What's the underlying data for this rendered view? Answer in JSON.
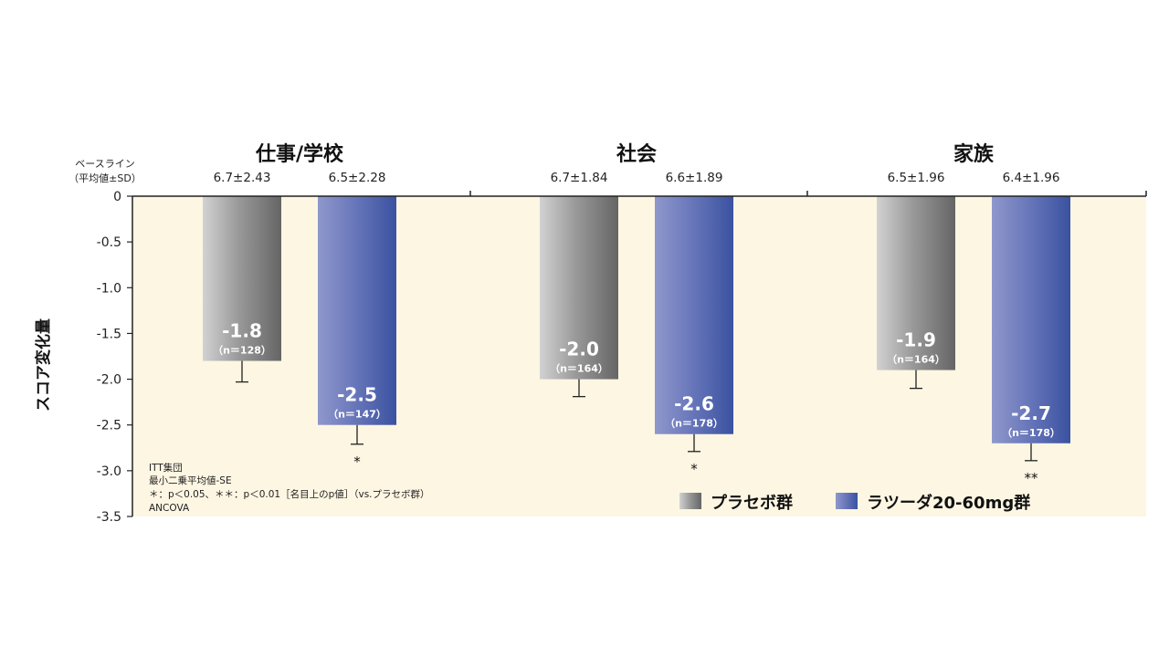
{
  "chart_data": {
    "type": "bar",
    "ylabel": "スコア変化量",
    "ylim": [
      -3.5,
      0
    ],
    "yticks": [
      "0",
      "-0.5",
      "-1.0",
      "-1.5",
      "-2.0",
      "-2.5",
      "-3.0",
      "-3.5"
    ],
    "ytick_values": [
      0,
      -0.5,
      -1.0,
      -1.5,
      -2.0,
      -2.5,
      -3.0,
      -3.5
    ],
    "baseline_header": [
      "ベースライン",
      "（平均値±SD）"
    ],
    "categories": [
      "仕事/学校",
      "社会",
      "家族"
    ],
    "series": [
      {
        "name": "プラセボ群",
        "values": [
          -1.8,
          -2.0,
          -1.9
        ],
        "value_labels": [
          "-1.8",
          "-2.0",
          "-1.9"
        ],
        "n_labels": [
          "（n＝128）",
          "（n＝164）",
          "（n＝164）"
        ],
        "baselines": [
          "6.7±2.43",
          "6.7±1.84",
          "6.5±1.96"
        ],
        "error_low": [
          -2.03,
          -2.19,
          -2.1
        ],
        "significance": [
          "",
          "",
          ""
        ]
      },
      {
        "name": "ラツーダ20-60mg群",
        "values": [
          -2.5,
          -2.6,
          -2.7
        ],
        "value_labels": [
          "-2.5",
          "-2.6",
          "-2.7"
        ],
        "n_labels": [
          "（n＝147）",
          "（n＝178）",
          "（n＝178）"
        ],
        "baselines": [
          "6.5±2.28",
          "6.6±1.89",
          "6.4±1.96"
        ],
        "error_low": [
          -2.71,
          -2.79,
          -2.89
        ],
        "significance": [
          "*",
          "*",
          "**"
        ]
      }
    ],
    "colors": {
      "placebo": [
        "#d2d2d2",
        "#9a9a9a",
        "#656565"
      ],
      "drug": [
        "#8f98cc",
        "#6a78bb",
        "#3a52a0"
      ],
      "background": "#fdf6e3"
    },
    "notes": [
      "ITT集団",
      "最小二乗平均値-SE",
      "＊：p＜0.05、＊＊：p＜0.01［名目上のp値］（vs.プラセボ群）",
      "ANCOVA"
    ],
    "legend_position": "bottom-right",
    "grid": false
  }
}
